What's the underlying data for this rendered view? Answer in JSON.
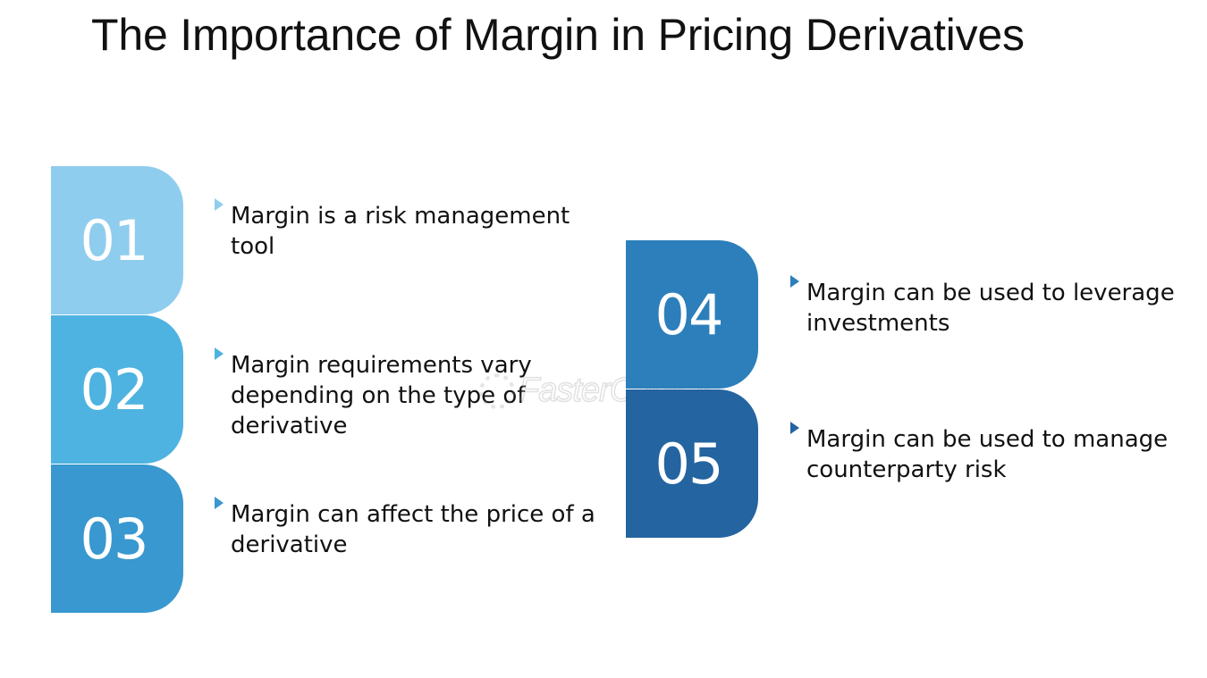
{
  "title": "The Importance of Margin in Pricing Derivatives",
  "items": [
    {
      "number": "01",
      "text": "Margin is a risk management tool",
      "tab_color": "#8fcdee",
      "bullet_color": "#8fcdee"
    },
    {
      "number": "02",
      "text": "Margin requirements vary depending on the type of derivative",
      "tab_color": "#4eb3e0",
      "bullet_color": "#4eb3e0"
    },
    {
      "number": "03",
      "text": "Margin can affect the price of a derivative",
      "tab_color": "#3898cf",
      "bullet_color": "#3898cf"
    },
    {
      "number": "04",
      "text": "Margin can be used to leverage investments",
      "tab_color": "#2c7fba",
      "bullet_color": "#2c7fba"
    },
    {
      "number": "05",
      "text": "Margin can be used to manage counterparty risk",
      "tab_color": "#2464a1",
      "bullet_color": "#2464a1"
    }
  ],
  "watermark": {
    "text": "FasterCapital",
    "icon": "gear-icon"
  }
}
